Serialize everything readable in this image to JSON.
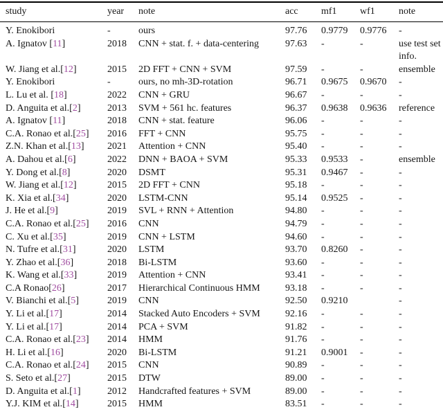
{
  "colors": {
    "citation_link": "#a04ca0",
    "text": "#161616",
    "rule": "#000000",
    "background": "#ffffff"
  },
  "table": {
    "columns": [
      "study",
      "year",
      "note",
      "acc",
      "mf1",
      "wf1",
      "note"
    ],
    "rows": [
      {
        "study": "Y. Enokibori",
        "cite": null,
        "year": "-",
        "method": "ours",
        "acc": "97.76",
        "mf1": "0.9779",
        "wf1": "0.9776",
        "note": "-"
      },
      {
        "study": "A. Ignatov ",
        "cite": "11",
        "year": "2018",
        "method": "CNN + stat. f. + data-centering",
        "acc": "97.63",
        "mf1": "-",
        "wf1": "-",
        "note": "use test set info."
      },
      {
        "study": "W. Jiang et al.",
        "cite": "12",
        "year": "2015",
        "method": "2D FFT + CNN + SVM",
        "acc": "97.59",
        "mf1": "-",
        "wf1": "-",
        "note": "ensemble"
      },
      {
        "study": "Y. Enokibori",
        "cite": null,
        "year": "-",
        "method": "ours, no mh-3D-rotation",
        "acc": "96.71",
        "mf1": "0.9675",
        "wf1": "0.9670",
        "note": "-"
      },
      {
        "study": "L. Lu et al. ",
        "cite": "18",
        "year": "2022",
        "method": "CNN + GRU",
        "acc": "96.67",
        "mf1": "-",
        "wf1": "-",
        "note": "-"
      },
      {
        "study": "D. Anguita et al.",
        "cite": "2",
        "year": "2013",
        "method": "SVM + 561 hc. features",
        "acc": "96.37",
        "mf1": "0.9638",
        "wf1": "0.9636",
        "note": "reference"
      },
      {
        "study": "A. Ignatov ",
        "cite": "11",
        "year": "2018",
        "method": "CNN + stat. feature",
        "acc": "96.06",
        "mf1": "-",
        "wf1": "-",
        "note": "-"
      },
      {
        "study": "C.A. Ronao et al.",
        "cite": "25",
        "year": "2016",
        "method": "FFT + CNN",
        "acc": "95.75",
        "mf1": "-",
        "wf1": "-",
        "note": "-"
      },
      {
        "study": "Z.N. Khan et al.",
        "cite": "13",
        "year": "2021",
        "method": "Attention + CNN",
        "acc": "95.40",
        "mf1": "-",
        "wf1": "-",
        "note": "-"
      },
      {
        "study": "A. Dahou et al.",
        "cite": "6",
        "year": "2022",
        "method": "DNN + BAOA + SVM",
        "acc": "95.33",
        "mf1": "0.9533",
        "wf1": "-",
        "note": "ensemble"
      },
      {
        "study": "Y. Dong et al.",
        "cite": "8",
        "year": "2020",
        "method": "DSMT",
        "acc": "95.31",
        "mf1": "0.9467",
        "wf1": "-",
        "note": "-"
      },
      {
        "study": "W. Jiang et al.",
        "cite": "12",
        "year": "2015",
        "method": "2D FFT + CNN",
        "acc": "95.18",
        "mf1": "-",
        "wf1": "-",
        "note": "-"
      },
      {
        "study": "K. Xia et al.",
        "cite": "34",
        "year": "2020",
        "method": "LSTM-CNN",
        "acc": "95.14",
        "mf1": "0.9525",
        "wf1": "-",
        "note": "-"
      },
      {
        "study": "J. He et al.",
        "cite": "9",
        "year": "2019",
        "method": "SVL + RNN + Attention",
        "acc": "94.80",
        "mf1": "-",
        "wf1": "-",
        "note": "-"
      },
      {
        "study": "C.A. Ronao et al.",
        "cite": "25",
        "year": "2016",
        "method": "CNN",
        "acc": "94.79",
        "mf1": "-",
        "wf1": "-",
        "note": "-"
      },
      {
        "study": "C. Xu et al.",
        "cite": "35",
        "year": "2019",
        "method": "CNN + LSTM",
        "acc": "94.60",
        "mf1": "-",
        "wf1": "-",
        "note": "-"
      },
      {
        "study": "N. Tufre et al.",
        "cite": "31",
        "year": "2020",
        "method": "LSTM",
        "acc": "93.70",
        "mf1": "0.8260",
        "wf1": "-",
        "note": "-"
      },
      {
        "study": "Y. Zhao et al.",
        "cite": "36",
        "year": "2018",
        "method": "Bi-LSTM",
        "acc": "93.60",
        "mf1": "-",
        "wf1": "-",
        "note": "-"
      },
      {
        "study": "K. Wang et al.",
        "cite": "33",
        "year": "2019",
        "method": "Attention + CNN",
        "acc": "93.41",
        "mf1": "-",
        "wf1": "-",
        "note": "-"
      },
      {
        "study": "C.A Ronao",
        "cite": "26",
        "year": "2017",
        "method": "Hierarchical Continuous HMM",
        "acc": "93.18",
        "mf1": "-",
        "wf1": "-",
        "note": "-"
      },
      {
        "study": "V. Bianchi et al.",
        "cite": "5",
        "year": "2019",
        "method": "CNN",
        "acc": "92.50",
        "mf1": "0.9210",
        "wf1": "",
        "note": "-"
      },
      {
        "study": "Y. Li et al.",
        "cite": "17",
        "year": "2014",
        "method": "Stacked Auto Encoders + SVM",
        "acc": "92.16",
        "mf1": "-",
        "wf1": "-",
        "note": "-"
      },
      {
        "study": "Y. Li et al.",
        "cite": "17",
        "year": "2014",
        "method": "PCA + SVM",
        "acc": "91.82",
        "mf1": "-",
        "wf1": "-",
        "note": "-"
      },
      {
        "study": "C.A. Ronao et al.",
        "cite": "23",
        "year": "2014",
        "method": "HMM",
        "acc": "91.76",
        "mf1": "-",
        "wf1": "-",
        "note": "-"
      },
      {
        "study": "H. Li et al.",
        "cite": "16",
        "year": "2020",
        "method": "Bi-LSTM",
        "acc": "91.21",
        "mf1": "0.9001",
        "wf1": "-",
        "note": "-"
      },
      {
        "study": "C.A. Ronao et al.",
        "cite": "24",
        "year": "2015",
        "method": "CNN",
        "acc": "90.89",
        "mf1": "-",
        "wf1": "-",
        "note": "-"
      },
      {
        "study": "S. Seto et al.",
        "cite": "27",
        "year": "2015",
        "method": "DTW",
        "acc": "89.00",
        "mf1": "-",
        "wf1": "-",
        "note": "-"
      },
      {
        "study": "D. Anguita et al.",
        "cite": "1",
        "year": "2012",
        "method": "Handcrafted features + SVM",
        "acc": "89.00",
        "mf1": "-",
        "wf1": "-",
        "note": "-"
      },
      {
        "study": "Y.J. KIM et al.",
        "cite": "14",
        "year": "2015",
        "method": "HMM",
        "acc": "83.51",
        "mf1": "-",
        "wf1": "-",
        "note": "-"
      }
    ]
  }
}
